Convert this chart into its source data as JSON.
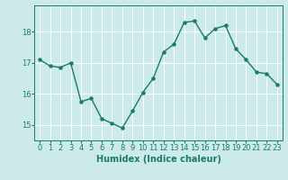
{
  "x": [
    0,
    1,
    2,
    3,
    4,
    5,
    6,
    7,
    8,
    9,
    10,
    11,
    12,
    13,
    14,
    15,
    16,
    17,
    18,
    19,
    20,
    21,
    22,
    23
  ],
  "y": [
    17.1,
    16.9,
    16.85,
    17.0,
    15.75,
    15.85,
    15.2,
    15.05,
    14.9,
    15.45,
    16.05,
    16.5,
    17.35,
    17.6,
    18.3,
    18.35,
    17.8,
    18.1,
    18.2,
    17.45,
    17.1,
    16.7,
    16.65,
    16.3
  ],
  "line_color": "#1a7a6e",
  "marker": "o",
  "marker_size": 2.2,
  "line_width": 1.0,
  "bg_color": "#cceaea",
  "grid_color": "#ffffff",
  "xlabel": "Humidex (Indice chaleur)",
  "xlim": [
    -0.5,
    23.5
  ],
  "ylim": [
    14.5,
    18.85
  ],
  "yticks": [
    15,
    16,
    17,
    18
  ],
  "xticks": [
    0,
    1,
    2,
    3,
    4,
    5,
    6,
    7,
    8,
    9,
    10,
    11,
    12,
    13,
    14,
    15,
    16,
    17,
    18,
    19,
    20,
    21,
    22,
    23
  ],
  "tick_color": "#1a7a6e",
  "label_color": "#1a7a6e",
  "xlabel_fontsize": 7,
  "tick_fontsize": 6
}
